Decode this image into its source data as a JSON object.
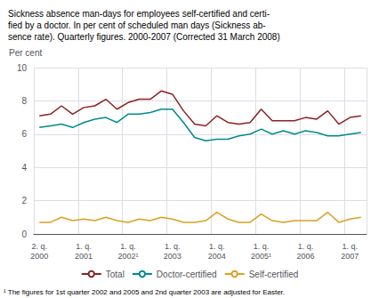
{
  "chart_data": {
    "type": "line",
    "title": "Sickness absence man-days for employees self-certified and certi-\nfied by a doctor. In per cent of scheduled man days (Sickness ab-\nsence rate). Quarterly figures. 2000-2007 (Corrected 31 March 2008)",
    "ylabel": "Per cent",
    "annotations": [
      "¹ The figures for 1st quarter 2002 and 2005 and 2nd quarter 2003 are adjusted for Easter."
    ],
    "categories": [
      "2. q.\n2000",
      null,
      null,
      null,
      "1. q.\n2001",
      null,
      null,
      null,
      "1. q.\n2002¹",
      null,
      null,
      null,
      "1. q.\n2003",
      null,
      null,
      null,
      "1. q.\n2004",
      null,
      null,
      null,
      "1. q.\n2005¹",
      null,
      null,
      null,
      "1. q.\n2006",
      null,
      null,
      null,
      "1. q.\n2007",
      null
    ],
    "series": [
      {
        "name": "Total",
        "color": "#8B2222",
        "values": [
          7.1,
          7.2,
          7.7,
          7.2,
          7.6,
          7.7,
          8.1,
          7.5,
          7.9,
          8.1,
          8.1,
          8.6,
          8.4,
          7.4,
          6.6,
          6.5,
          7.1,
          6.7,
          6.6,
          6.7,
          7.5,
          6.8,
          6.8,
          6.8,
          7.0,
          6.9,
          7.4,
          6.6,
          7.0,
          7.1
        ]
      },
      {
        "name": "Doctor-certified",
        "color": "#008B8B",
        "values": [
          6.4,
          6.5,
          6.6,
          6.4,
          6.7,
          6.9,
          7.0,
          6.7,
          7.2,
          7.2,
          7.3,
          7.5,
          7.5,
          6.7,
          5.8,
          5.6,
          5.7,
          5.7,
          5.9,
          6.0,
          6.3,
          6.0,
          6.2,
          6.0,
          6.2,
          6.1,
          5.9,
          5.9,
          6.0,
          6.1
        ]
      },
      {
        "name": "Self-certified",
        "color": "#DAA020",
        "values": [
          0.7,
          0.7,
          1.0,
          0.8,
          0.9,
          0.8,
          1.0,
          0.8,
          0.7,
          0.9,
          0.8,
          1.0,
          0.9,
          0.7,
          0.7,
          0.8,
          1.3,
          0.9,
          0.7,
          0.7,
          1.2,
          0.8,
          0.7,
          0.8,
          0.8,
          0.8,
          1.3,
          0.7,
          0.9,
          1.0
        ]
      }
    ],
    "ylim": [
      0,
      10
    ],
    "yticks": [
      0,
      2,
      4,
      6,
      8,
      10
    ],
    "grid": true,
    "legend": "bottom"
  }
}
